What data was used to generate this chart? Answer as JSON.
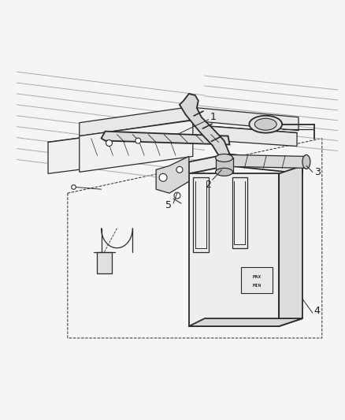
{
  "background_color": "#f5f5f5",
  "line_color": "#2a2a2a",
  "label_color": "#1a1a1a",
  "fig_width": 4.38,
  "fig_height": 5.33,
  "dpi": 100,
  "label_fontsize": 9,
  "bg_lines_color": "#cccccc",
  "part_fill": "#f0f0f0",
  "tank_fill": "#eeeeee"
}
